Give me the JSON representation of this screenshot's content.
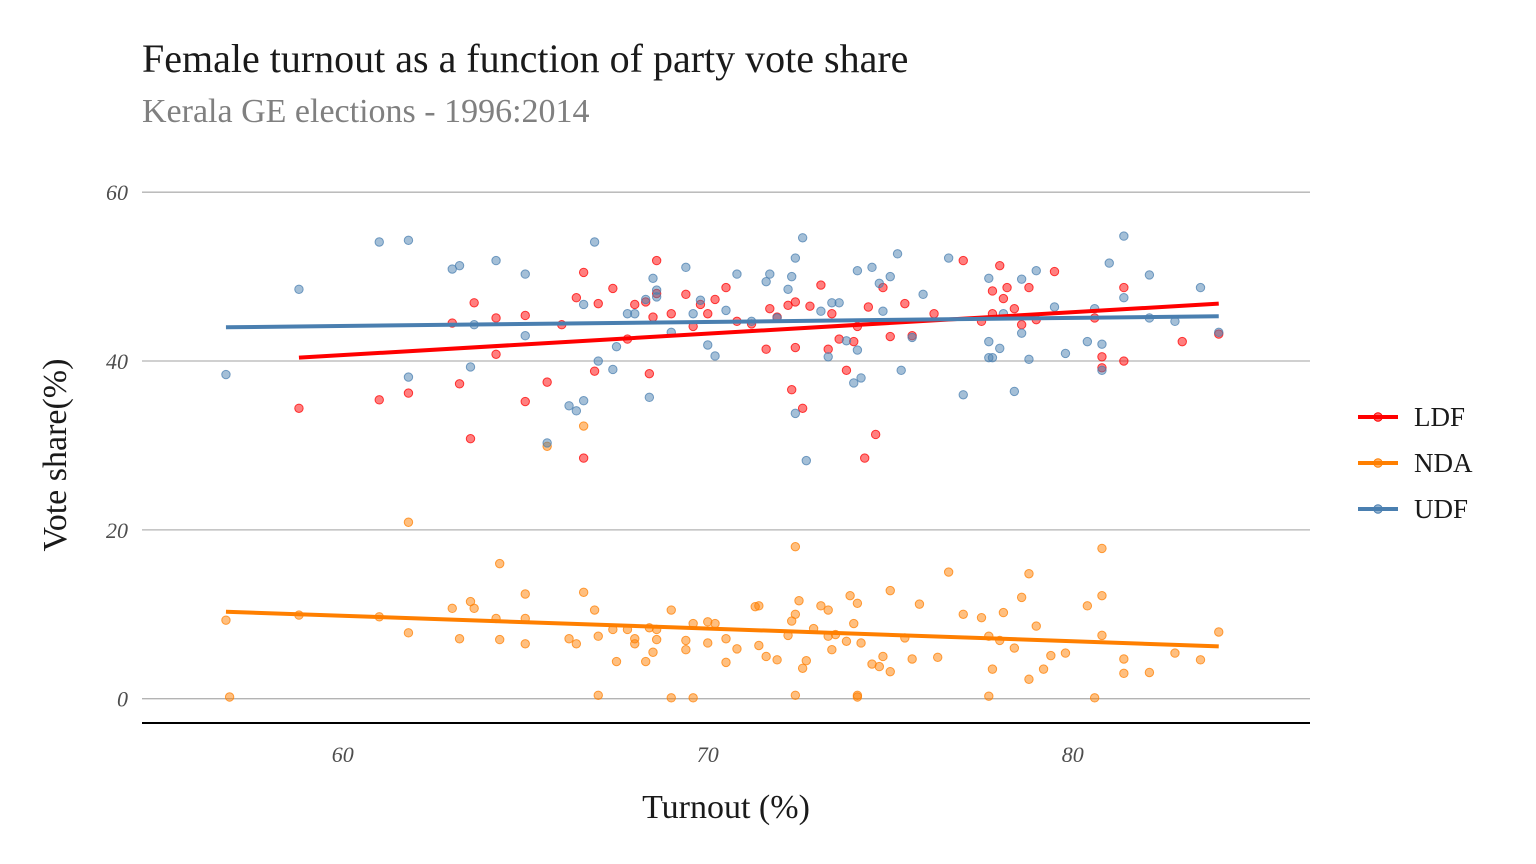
{
  "chart_data": {
    "type": "scatter",
    "title": "Female turnout as a function of party vote share",
    "subtitle": "Kerala GE elections - 1996:2014",
    "xlabel": "Turnout (%)",
    "ylabel": "Vote share(%)",
    "xlim": [
      54.5,
      86.5
    ],
    "ylim": [
      -3,
      65
    ],
    "x_ticks": [
      60,
      70,
      80
    ],
    "y_ticks": [
      0,
      20,
      40,
      60
    ],
    "grid": "horizontal",
    "legend_position": "right",
    "series": [
      {
        "name": "LDF",
        "color": "#ff0000",
        "trend": [
          [
            58.8,
            40.4
          ],
          [
            84.0,
            46.8
          ]
        ],
        "points": [
          [
            58.8,
            34.4
          ],
          [
            61.0,
            35.4
          ],
          [
            61.8,
            36.2
          ],
          [
            63.0,
            44.5
          ],
          [
            63.2,
            37.3
          ],
          [
            63.5,
            30.8
          ],
          [
            63.6,
            46.9
          ],
          [
            64.2,
            45.1
          ],
          [
            64.2,
            40.8
          ],
          [
            65.0,
            35.2
          ],
          [
            65.0,
            45.4
          ],
          [
            65.6,
            37.5
          ],
          [
            66.0,
            44.3
          ],
          [
            66.4,
            47.5
          ],
          [
            66.6,
            50.5
          ],
          [
            66.6,
            28.5
          ],
          [
            66.9,
            38.8
          ],
          [
            67.0,
            46.8
          ],
          [
            67.4,
            48.6
          ],
          [
            67.8,
            42.6
          ],
          [
            68.0,
            46.7
          ],
          [
            68.3,
            47.0
          ],
          [
            68.4,
            38.5
          ],
          [
            68.5,
            45.2
          ],
          [
            68.6,
            48.0
          ],
          [
            68.6,
            51.9
          ],
          [
            69.0,
            45.6
          ],
          [
            69.4,
            47.9
          ],
          [
            69.6,
            44.1
          ],
          [
            69.8,
            46.7
          ],
          [
            70.0,
            45.6
          ],
          [
            70.2,
            47.3
          ],
          [
            70.5,
            48.7
          ],
          [
            70.8,
            44.7
          ],
          [
            71.2,
            44.4
          ],
          [
            71.6,
            41.4
          ],
          [
            71.7,
            46.2
          ],
          [
            71.9,
            45.2
          ],
          [
            72.2,
            46.6
          ],
          [
            72.3,
            36.6
          ],
          [
            72.4,
            41.6
          ],
          [
            72.4,
            47.0
          ],
          [
            72.6,
            34.4
          ],
          [
            72.8,
            46.5
          ],
          [
            73.1,
            49.0
          ],
          [
            73.3,
            41.4
          ],
          [
            73.4,
            45.6
          ],
          [
            73.6,
            42.6
          ],
          [
            73.8,
            38.9
          ],
          [
            74.0,
            42.3
          ],
          [
            74.1,
            44.1
          ],
          [
            74.3,
            28.5
          ],
          [
            74.4,
            46.4
          ],
          [
            74.6,
            31.3
          ],
          [
            74.8,
            48.7
          ],
          [
            75.0,
            42.9
          ],
          [
            75.4,
            46.8
          ],
          [
            75.6,
            43.0
          ],
          [
            76.2,
            45.6
          ],
          [
            77.0,
            51.9
          ],
          [
            77.5,
            44.7
          ],
          [
            77.8,
            45.6
          ],
          [
            77.8,
            48.3
          ],
          [
            78.0,
            51.3
          ],
          [
            78.1,
            47.4
          ],
          [
            78.2,
            48.7
          ],
          [
            78.4,
            46.2
          ],
          [
            78.6,
            44.3
          ],
          [
            78.8,
            48.7
          ],
          [
            79.0,
            44.9
          ],
          [
            79.5,
            50.6
          ],
          [
            80.6,
            45.1
          ],
          [
            80.8,
            40.5
          ],
          [
            80.8,
            39.2
          ],
          [
            81.4,
            48.7
          ],
          [
            81.4,
            40.0
          ],
          [
            83.0,
            42.3
          ],
          [
            84.0,
            43.2
          ]
        ]
      },
      {
        "name": "NDA",
        "color": "#ff7f00",
        "trend": [
          [
            56.8,
            10.3
          ],
          [
            84.0,
            6.2
          ]
        ],
        "points": [
          [
            56.8,
            9.3
          ],
          [
            56.9,
            0.2
          ],
          [
            58.8,
            9.9
          ],
          [
            61.0,
            9.7
          ],
          [
            61.8,
            7.8
          ],
          [
            61.8,
            20.9
          ],
          [
            63.0,
            10.7
          ],
          [
            63.2,
            7.1
          ],
          [
            63.5,
            11.5
          ],
          [
            63.6,
            10.7
          ],
          [
            64.2,
            9.5
          ],
          [
            64.3,
            16.0
          ],
          [
            64.3,
            7.0
          ],
          [
            65.0,
            9.5
          ],
          [
            65.0,
            12.4
          ],
          [
            65.0,
            6.5
          ],
          [
            65.6,
            29.9
          ],
          [
            66.2,
            7.1
          ],
          [
            66.4,
            6.5
          ],
          [
            66.6,
            32.3
          ],
          [
            66.6,
            12.6
          ],
          [
            66.9,
            10.5
          ],
          [
            67.0,
            0.4
          ],
          [
            67.0,
            7.4
          ],
          [
            67.4,
            8.2
          ],
          [
            67.5,
            4.4
          ],
          [
            67.8,
            8.2
          ],
          [
            68.0,
            6.5
          ],
          [
            68.0,
            7.1
          ],
          [
            68.3,
            4.4
          ],
          [
            68.4,
            8.4
          ],
          [
            68.5,
            5.5
          ],
          [
            68.6,
            7.0
          ],
          [
            68.6,
            8.2
          ],
          [
            69.0,
            10.5
          ],
          [
            69.0,
            0.1
          ],
          [
            69.4,
            6.9
          ],
          [
            69.4,
            5.8
          ],
          [
            69.6,
            8.9
          ],
          [
            69.6,
            0.1
          ],
          [
            70.0,
            6.6
          ],
          [
            70.0,
            9.1
          ],
          [
            70.2,
            8.9
          ],
          [
            70.5,
            7.1
          ],
          [
            70.5,
            4.3
          ],
          [
            70.8,
            5.9
          ],
          [
            71.3,
            10.9
          ],
          [
            71.4,
            11.0
          ],
          [
            71.4,
            6.3
          ],
          [
            71.6,
            5.0
          ],
          [
            71.9,
            4.6
          ],
          [
            72.2,
            7.5
          ],
          [
            72.3,
            9.2
          ],
          [
            72.4,
            18.0
          ],
          [
            72.4,
            0.4
          ],
          [
            72.4,
            10.0
          ],
          [
            72.5,
            11.6
          ],
          [
            72.6,
            3.6
          ],
          [
            72.7,
            4.5
          ],
          [
            72.9,
            8.3
          ],
          [
            73.1,
            11.0
          ],
          [
            73.3,
            7.4
          ],
          [
            73.3,
            10.5
          ],
          [
            73.4,
            5.8
          ],
          [
            73.5,
            7.6
          ],
          [
            73.8,
            6.8
          ],
          [
            73.9,
            12.2
          ],
          [
            74.0,
            8.9
          ],
          [
            74.1,
            0.4
          ],
          [
            74.1,
            0.2
          ],
          [
            74.1,
            11.3
          ],
          [
            74.2,
            6.6
          ],
          [
            74.5,
            4.1
          ],
          [
            74.7,
            3.8
          ],
          [
            74.8,
            5.0
          ],
          [
            75.0,
            12.8
          ],
          [
            75.0,
            3.2
          ],
          [
            75.4,
            7.2
          ],
          [
            75.6,
            4.7
          ],
          [
            75.8,
            11.2
          ],
          [
            76.3,
            4.9
          ],
          [
            76.6,
            15.0
          ],
          [
            77.0,
            10.0
          ],
          [
            77.5,
            9.6
          ],
          [
            77.7,
            7.4
          ],
          [
            77.7,
            0.3
          ],
          [
            77.8,
            3.5
          ],
          [
            78.0,
            6.9
          ],
          [
            78.1,
            10.2
          ],
          [
            78.4,
            6.0
          ],
          [
            78.6,
            12.0
          ],
          [
            78.8,
            2.3
          ],
          [
            78.8,
            14.8
          ],
          [
            79.0,
            8.6
          ],
          [
            79.2,
            3.5
          ],
          [
            79.4,
            5.1
          ],
          [
            79.8,
            5.4
          ],
          [
            80.4,
            11.0
          ],
          [
            80.6,
            0.1
          ],
          [
            80.8,
            12.2
          ],
          [
            80.8,
            17.8
          ],
          [
            80.8,
            7.5
          ],
          [
            81.4,
            4.7
          ],
          [
            81.4,
            3.0
          ],
          [
            82.1,
            3.1
          ],
          [
            82.8,
            5.4
          ],
          [
            83.5,
            4.6
          ],
          [
            84.0,
            7.9
          ]
        ]
      },
      {
        "name": "UDF",
        "color": "#4a7fb0",
        "trend": [
          [
            56.8,
            44.0
          ],
          [
            84.0,
            45.3
          ]
        ],
        "points": [
          [
            56.8,
            38.4
          ],
          [
            58.8,
            48.5
          ],
          [
            61.0,
            54.1
          ],
          [
            61.8,
            54.3
          ],
          [
            61.8,
            38.1
          ],
          [
            63.0,
            50.9
          ],
          [
            63.2,
            51.3
          ],
          [
            63.5,
            39.3
          ],
          [
            63.6,
            44.3
          ],
          [
            64.2,
            51.9
          ],
          [
            65.0,
            50.3
          ],
          [
            65.0,
            43.0
          ],
          [
            65.6,
            30.3
          ],
          [
            66.2,
            34.7
          ],
          [
            66.4,
            34.1
          ],
          [
            66.6,
            35.3
          ],
          [
            66.6,
            46.7
          ],
          [
            66.9,
            54.1
          ],
          [
            67.0,
            40.0
          ],
          [
            67.4,
            39.0
          ],
          [
            67.5,
            41.7
          ],
          [
            67.8,
            45.6
          ],
          [
            68.0,
            45.6
          ],
          [
            68.3,
            47.3
          ],
          [
            68.4,
            35.7
          ],
          [
            68.5,
            49.8
          ],
          [
            68.6,
            48.4
          ],
          [
            68.6,
            47.6
          ],
          [
            69.0,
            43.4
          ],
          [
            69.4,
            51.1
          ],
          [
            69.6,
            45.6
          ],
          [
            69.8,
            47.2
          ],
          [
            70.0,
            41.9
          ],
          [
            70.2,
            40.6
          ],
          [
            70.5,
            46.0
          ],
          [
            70.8,
            50.3
          ],
          [
            71.2,
            44.7
          ],
          [
            71.6,
            49.4
          ],
          [
            71.7,
            50.3
          ],
          [
            71.9,
            45.1
          ],
          [
            72.2,
            48.5
          ],
          [
            72.3,
            50.0
          ],
          [
            72.4,
            33.8
          ],
          [
            72.4,
            52.2
          ],
          [
            72.6,
            54.6
          ],
          [
            72.7,
            28.2
          ],
          [
            73.1,
            45.9
          ],
          [
            73.3,
            40.5
          ],
          [
            73.4,
            46.9
          ],
          [
            73.6,
            46.9
          ],
          [
            73.8,
            42.4
          ],
          [
            74.0,
            37.4
          ],
          [
            74.1,
            41.3
          ],
          [
            74.1,
            50.7
          ],
          [
            74.2,
            38.0
          ],
          [
            74.5,
            51.1
          ],
          [
            74.7,
            49.2
          ],
          [
            74.8,
            45.9
          ],
          [
            75.0,
            50.0
          ],
          [
            75.2,
            52.7
          ],
          [
            75.3,
            38.9
          ],
          [
            75.6,
            42.8
          ],
          [
            75.9,
            47.9
          ],
          [
            76.6,
            52.2
          ],
          [
            77.0,
            36.0
          ],
          [
            77.7,
            40.4
          ],
          [
            77.7,
            42.3
          ],
          [
            77.7,
            49.8
          ],
          [
            77.8,
            40.4
          ],
          [
            78.0,
            41.5
          ],
          [
            78.1,
            45.6
          ],
          [
            78.4,
            36.4
          ],
          [
            78.6,
            49.7
          ],
          [
            78.6,
            43.3
          ],
          [
            78.8,
            40.2
          ],
          [
            79.0,
            50.7
          ],
          [
            79.5,
            46.4
          ],
          [
            79.8,
            40.9
          ],
          [
            80.4,
            42.3
          ],
          [
            80.6,
            46.2
          ],
          [
            80.8,
            42.0
          ],
          [
            80.8,
            38.9
          ],
          [
            81.0,
            51.6
          ],
          [
            81.4,
            54.8
          ],
          [
            81.4,
            47.5
          ],
          [
            82.1,
            50.2
          ],
          [
            82.1,
            45.1
          ],
          [
            82.8,
            44.7
          ],
          [
            83.5,
            48.7
          ],
          [
            84.0,
            43.4
          ]
        ]
      }
    ]
  }
}
